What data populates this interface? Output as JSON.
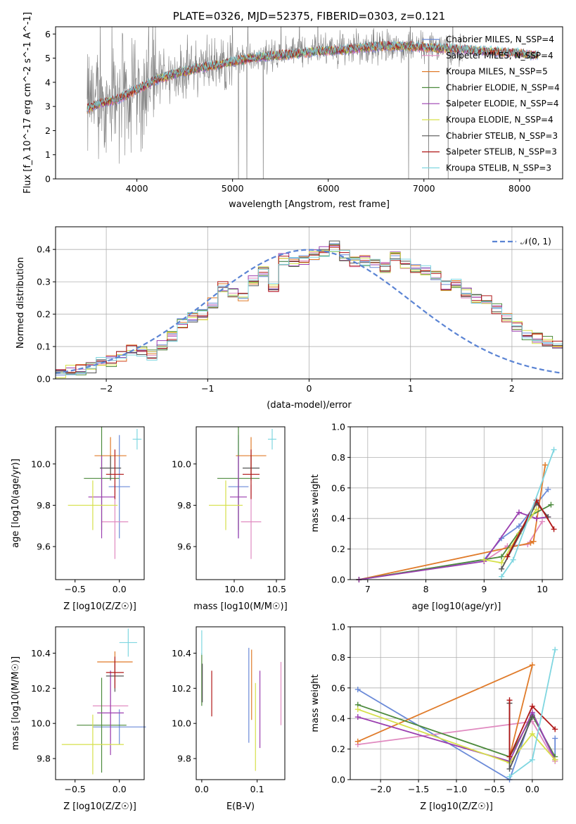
{
  "chart_data": [
    {
      "type": "line",
      "title": "PLATE=0326, MJD=52375, FIBERID=0303, z=0.121",
      "xlabel": "wavelength [Angstrom, rest frame]",
      "ylabel": "Flux [f_λ 10^-17 erg cm^-2 s^-1 A^-1]",
      "xlim": [
        3150,
        8450
      ],
      "ylim": [
        0,
        6.3
      ],
      "xticks": [
        4000,
        5000,
        6000,
        7000,
        8000
      ],
      "yticks": [
        0,
        1,
        2,
        3,
        4,
        5,
        6
      ],
      "grid": false,
      "legend_position": "top-right",
      "observed_spectrum": {
        "color": "#808080",
        "x": [
          3480,
          3600,
          3800,
          4000,
          4200,
          4400,
          4600,
          4800,
          5000,
          5200,
          5400,
          5600,
          5800,
          6000,
          6200,
          6400,
          6600,
          6800,
          7000,
          7200,
          7400
        ],
        "y": [
          3.0,
          3.3,
          3.5,
          3.8,
          4.2,
          4.4,
          4.6,
          4.75,
          4.9,
          5.05,
          5.15,
          5.2,
          5.3,
          5.35,
          5.4,
          5.5,
          5.55,
          5.5,
          5.45,
          5.4,
          5.3
        ]
      },
      "model_continuum": {
        "x": [
          3480,
          3600,
          3800,
          4000,
          4200,
          4400,
          4600,
          4800,
          5000,
          5200,
          5400,
          5600,
          5800,
          6000,
          6200,
          6400,
          6600,
          6800,
          7000,
          7200,
          7400,
          7600,
          7800,
          8000,
          8200
        ],
        "y": [
          2.9,
          3.1,
          3.3,
          3.7,
          4.1,
          4.35,
          4.55,
          4.7,
          4.85,
          5.0,
          5.1,
          5.15,
          5.25,
          5.3,
          5.35,
          5.45,
          5.5,
          5.5,
          5.45,
          5.4,
          5.35,
          5.3,
          5.25,
          5.2,
          5.1
        ]
      },
      "series": [
        {
          "name": "Chabrier MILES, N_SSP=4",
          "color": "#6a8ad8"
        },
        {
          "name": "Salpeter MILES, N_SSP=4",
          "color": "#e08ac0"
        },
        {
          "name": "Kroupa MILES, N_SSP=5",
          "color": "#e07b2a"
        },
        {
          "name": "Chabrier ELODIE, N_SSP=4",
          "color": "#4c8a3c"
        },
        {
          "name": "Salpeter ELODIE, N_SSP=4",
          "color": "#9b3fb0"
        },
        {
          "name": "Kroupa ELODIE, N_SSP=4",
          "color": "#d6e04a"
        },
        {
          "name": "Chabrier STELIB, N_SSP=3",
          "color": "#555555"
        },
        {
          "name": "Salpeter STELIB, N_SSP=3",
          "color": "#b01818"
        },
        {
          "name": "Kroupa STELIB, N_SSP=3",
          "color": "#7fd6e0"
        }
      ]
    },
    {
      "type": "histogram",
      "xlabel": "(data-model)/error",
      "ylabel": "Normed distribution",
      "xlim": [
        -2.5,
        2.5
      ],
      "ylim": [
        0,
        0.47
      ],
      "xticks": [
        -2,
        -1,
        0,
        1,
        2
      ],
      "yticks": [
        0.0,
        0.1,
        0.2,
        0.3,
        0.4
      ],
      "grid": true,
      "legend_position": "top-right",
      "reference": {
        "name": "𝒩(0, 1)",
        "color": "#5b84d4",
        "style": "dashed"
      },
      "bin_width": 0.1,
      "bin_start": -2.5,
      "density": [
        0.02,
        0.025,
        0.03,
        0.035,
        0.05,
        0.055,
        0.07,
        0.09,
        0.085,
        0.075,
        0.105,
        0.13,
        0.17,
        0.19,
        0.2,
        0.235,
        0.285,
        0.265,
        0.255,
        0.305,
        0.33,
        0.285,
        0.37,
        0.36,
        0.37,
        0.385,
        0.395,
        0.41,
        0.38,
        0.36,
        0.365,
        0.355,
        0.345,
        0.375,
        0.355,
        0.34,
        0.335,
        0.32,
        0.29,
        0.295,
        0.265,
        0.245,
        0.24,
        0.215,
        0.19,
        0.165,
        0.135,
        0.125,
        0.115,
        0.1,
        0.09,
        0.075,
        0.07,
        0.06,
        0.05,
        0.045,
        0.04,
        0.038,
        0.035,
        0.03
      ]
    },
    {
      "type": "errorbar",
      "xlabel": "Z [log10(Z/Z☉)]",
      "ylabel": "age [log10(age/yr)]",
      "xlim": [
        -0.72,
        0.28
      ],
      "ylim": [
        9.44,
        10.18
      ],
      "xticks": [
        -0.5,
        0.0
      ],
      "yticks": [
        9.6,
        9.8,
        10.0
      ],
      "points": [
        {
          "x": 0.0,
          "xerr": 0.12,
          "y": 9.89,
          "yerr": 0.25,
          "color": "#6a8ad8"
        },
        {
          "x": -0.05,
          "xerr": 0.15,
          "y": 9.72,
          "yerr": 0.18,
          "color": "#e08ac0"
        },
        {
          "x": -0.1,
          "xerr": 0.18,
          "y": 10.04,
          "yerr": 0.09,
          "color": "#e07b2a"
        },
        {
          "x": -0.2,
          "xerr": 0.2,
          "y": 9.93,
          "yerr": 0.25,
          "color": "#4c8a3c"
        },
        {
          "x": -0.2,
          "xerr": 0.15,
          "y": 9.84,
          "yerr": 0.2,
          "color": "#9b3fb0"
        },
        {
          "x": -0.3,
          "xerr": 0.28,
          "y": 9.8,
          "yerr": 0.12,
          "color": "#d6e04a"
        },
        {
          "x": -0.1,
          "xerr": 0.12,
          "y": 9.98,
          "yerr": 0.06,
          "color": "#555555"
        },
        {
          "x": -0.05,
          "xerr": 0.1,
          "y": 9.95,
          "yerr": 0.12,
          "color": "#b01818"
        },
        {
          "x": 0.2,
          "xerr": 0.05,
          "y": 10.12,
          "yerr": 0.05,
          "color": "#7fd6e0"
        }
      ]
    },
    {
      "type": "errorbar",
      "xlabel": "mass [log10(M/M☉)]",
      "xlim": [
        9.55,
        10.6
      ],
      "ylim": [
        9.44,
        10.18
      ],
      "xticks": [
        10.0,
        10.5
      ],
      "yticks": [
        9.6,
        9.8,
        10.0
      ],
      "points": [
        {
          "x": 10.05,
          "xerr": 0.12,
          "y": 9.89,
          "yerr": 0.25,
          "color": "#6a8ad8"
        },
        {
          "x": 10.2,
          "xerr": 0.12,
          "y": 9.72,
          "yerr": 0.18,
          "color": "#e08ac0"
        },
        {
          "x": 10.2,
          "xerr": 0.18,
          "y": 10.04,
          "yerr": 0.09,
          "color": "#e07b2a"
        },
        {
          "x": 10.05,
          "xerr": 0.25,
          "y": 9.93,
          "yerr": 0.25,
          "color": "#4c8a3c"
        },
        {
          "x": 10.05,
          "xerr": 0.1,
          "y": 9.84,
          "yerr": 0.2,
          "color": "#9b3fb0"
        },
        {
          "x": 9.9,
          "xerr": 0.2,
          "y": 9.8,
          "yerr": 0.12,
          "color": "#d6e04a"
        },
        {
          "x": 10.2,
          "xerr": 0.1,
          "y": 9.98,
          "yerr": 0.06,
          "color": "#555555"
        },
        {
          "x": 10.2,
          "xerr": 0.1,
          "y": 9.95,
          "yerr": 0.12,
          "color": "#b01818"
        },
        {
          "x": 10.45,
          "xerr": 0.05,
          "y": 10.12,
          "yerr": 0.05,
          "color": "#7fd6e0"
        }
      ]
    },
    {
      "type": "line",
      "xlabel": "age [log10(age/yr)]",
      "ylabel": "mass weight",
      "xlim": [
        6.7,
        10.35
      ],
      "ylim": [
        0,
        1.0
      ],
      "xticks": [
        7,
        8,
        9,
        10
      ],
      "yticks": [
        0.0,
        0.2,
        0.4,
        0.6,
        0.8,
        1.0
      ],
      "grid": true,
      "series": [
        {
          "color": "#6a8ad8",
          "x": [
            6.85,
            9.0,
            9.3,
            9.6,
            10.1
          ],
          "y": [
            0.0,
            0.13,
            0.27,
            0.35,
            0.59
          ]
        },
        {
          "color": "#e08ac0",
          "x": [
            9.0,
            9.4,
            9.75,
            10.0
          ],
          "y": [
            0.12,
            0.22,
            0.23,
            0.38
          ]
        },
        {
          "color": "#e07b2a",
          "x": [
            6.85,
            9.8,
            9.85,
            10.05
          ],
          "y": [
            0.0,
            0.24,
            0.25,
            0.75
          ]
        },
        {
          "color": "#4c8a3c",
          "x": [
            6.85,
            9.3,
            9.8,
            10.15
          ],
          "y": [
            0.0,
            0.15,
            0.42,
            0.49
          ]
        },
        {
          "color": "#9b3fb0",
          "x": [
            6.85,
            9.0,
            9.6,
            9.9,
            10.1
          ],
          "y": [
            0.0,
            0.12,
            0.44,
            0.4,
            0.41
          ]
        },
        {
          "color": "#d6e04a",
          "x": [
            9.0,
            9.3,
            9.6,
            9.9
          ],
          "y": [
            0.13,
            0.11,
            0.3,
            0.46
          ]
        },
        {
          "color": "#555555",
          "x": [
            9.3,
            9.9,
            10.1
          ],
          "y": [
            0.07,
            0.5,
            0.41
          ]
        },
        {
          "color": "#b01818",
          "x": [
            9.4,
            9.9,
            10.2
          ],
          "y": [
            0.15,
            0.52,
            0.33
          ]
        },
        {
          "color": "#7fd6e0",
          "x": [
            9.3,
            9.5,
            10.2
          ],
          "y": [
            0.02,
            0.13,
            0.85
          ]
        }
      ]
    },
    {
      "type": "errorbar",
      "xlabel": "Z [log10(Z/Z☉)]",
      "ylabel": "mass [log10(M/M☉)]",
      "xlim": [
        -0.72,
        0.28
      ],
      "ylim": [
        9.68,
        10.55
      ],
      "xticks": [
        -0.5,
        0.0
      ],
      "yticks": [
        9.8,
        10.0,
        10.2,
        10.4
      ],
      "points": [
        {
          "x": 0.0,
          "xerr": 0.3,
          "y": 9.98,
          "yerr": 0.1,
          "color": "#6a8ad8"
        },
        {
          "x": -0.1,
          "xerr": 0.2,
          "y": 10.1,
          "yerr": 0.2,
          "color": "#e08ac0"
        },
        {
          "x": -0.05,
          "xerr": 0.2,
          "y": 10.35,
          "yerr": 0.06,
          "color": "#e07b2a"
        },
        {
          "x": -0.2,
          "xerr": 0.28,
          "y": 9.99,
          "yerr": 0.27,
          "color": "#4c8a3c"
        },
        {
          "x": -0.1,
          "xerr": 0.15,
          "y": 10.06,
          "yerr": 0.24,
          "color": "#9b3fb0"
        },
        {
          "x": -0.3,
          "xerr": 0.35,
          "y": 9.88,
          "yerr": 0.17,
          "color": "#d6e04a"
        },
        {
          "x": -0.05,
          "xerr": 0.1,
          "y": 10.27,
          "yerr": 0.09,
          "color": "#555555"
        },
        {
          "x": -0.05,
          "xerr": 0.1,
          "y": 10.29,
          "yerr": 0.09,
          "color": "#b01818"
        },
        {
          "x": 0.1,
          "xerr": 0.1,
          "y": 10.46,
          "yerr": 0.08,
          "color": "#7fd6e0"
        }
      ]
    },
    {
      "type": "errorbar",
      "xlabel": "E(B-V)",
      "xlim": [
        -0.01,
        0.15
      ],
      "ylim": [
        9.68,
        10.55
      ],
      "xticks": [
        0.0,
        0.1
      ],
      "yticks": [
        9.8,
        10.0,
        10.2,
        10.4
      ],
      "points": [
        {
          "x": 0.085,
          "y": 10.16,
          "yerr": 0.27,
          "color": "#6a8ad8"
        },
        {
          "x": 0.143,
          "y": 10.17,
          "yerr": 0.18,
          "color": "#e08ac0"
        },
        {
          "x": 0.09,
          "y": 10.22,
          "yerr": 0.2,
          "color": "#e07b2a"
        },
        {
          "x": 0.0,
          "y": 10.25,
          "yerr": 0.15,
          "color": "#4c8a3c"
        },
        {
          "x": 0.105,
          "y": 10.08,
          "yerr": 0.22,
          "color": "#9b3fb0"
        },
        {
          "x": 0.097,
          "y": 9.98,
          "yerr": 0.25,
          "color": "#d6e04a"
        },
        {
          "x": 0.001,
          "y": 10.23,
          "yerr": 0.11,
          "color": "#555555"
        },
        {
          "x": 0.018,
          "y": 10.17,
          "yerr": 0.13,
          "color": "#b01818"
        },
        {
          "x": 0.0,
          "y": 10.46,
          "yerr": 0.07,
          "color": "#7fd6e0"
        }
      ]
    },
    {
      "type": "line",
      "xlabel": "Z [log10(Z/Z☉)]",
      "ylabel": "mass weight",
      "xlim": [
        -2.4,
        0.4
      ],
      "ylim": [
        0,
        1.0
      ],
      "xticks": [
        -2.0,
        -1.5,
        -1.0,
        -0.5,
        0.0
      ],
      "yticks": [
        0.0,
        0.2,
        0.4,
        0.6,
        0.8,
        1.0
      ],
      "grid": true,
      "series": [
        {
          "color": "#6a8ad8",
          "x": [
            -2.3,
            -0.3,
            0.0,
            0.3,
            0.3
          ],
          "y": [
            0.59,
            0.0,
            0.43,
            0.13,
            0.27
          ]
        },
        {
          "color": "#e08ac0",
          "x": [
            -2.3,
            0.0,
            0.3
          ],
          "y": [
            0.23,
            0.38,
            0.12
          ]
        },
        {
          "color": "#e07b2a",
          "x": [
            -2.3,
            0.0,
            -0.3
          ],
          "y": [
            0.25,
            0.75,
            0.15
          ]
        },
        {
          "color": "#4c8a3c",
          "x": [
            -2.3,
            -0.3,
            0.0,
            0.3
          ],
          "y": [
            0.49,
            0.15,
            0.42,
            0.15
          ]
        },
        {
          "color": "#9b3fb0",
          "x": [
            -2.3,
            -0.3,
            0.0,
            0.3
          ],
          "y": [
            0.41,
            0.12,
            0.44,
            0.13
          ]
        },
        {
          "color": "#d6e04a",
          "x": [
            -2.3,
            -0.3,
            0.0,
            0.3
          ],
          "y": [
            0.46,
            0.11,
            0.3,
            0.13
          ]
        },
        {
          "color": "#555555",
          "x": [
            -0.3,
            -0.3,
            0.0
          ],
          "y": [
            0.5,
            0.07,
            0.41
          ]
        },
        {
          "color": "#b01818",
          "x": [
            -0.3,
            -0.3,
            0.0,
            0.3
          ],
          "y": [
            0.52,
            0.15,
            0.48,
            0.33
          ]
        },
        {
          "color": "#7fd6e0",
          "x": [
            -0.3,
            0.0,
            0.3
          ],
          "y": [
            0.02,
            0.13,
            0.85
          ]
        }
      ]
    }
  ]
}
